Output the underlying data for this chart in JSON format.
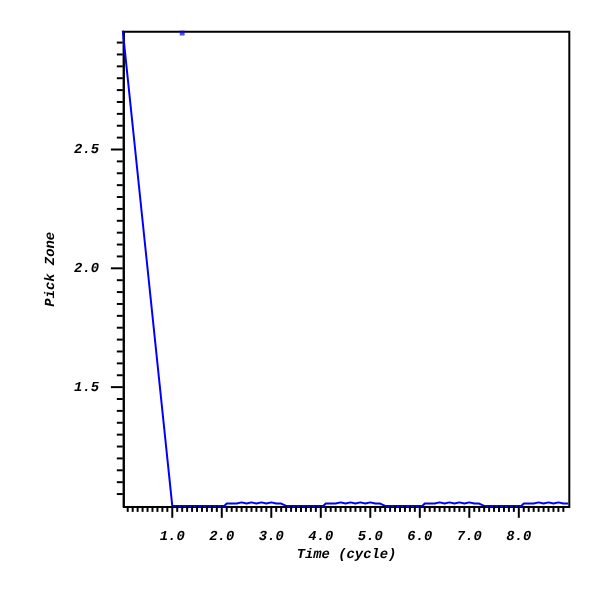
{
  "chart_data": {
    "type": "line",
    "xlabel": "Time (cycle)",
    "ylabel": "Pick Zone",
    "xlim": [
      0,
      9
    ],
    "ylim": [
      1,
      3
    ],
    "xticks": [
      {
        "value": 0.1,
        "label": null
      },
      {
        "value": 0.2,
        "label": null
      },
      {
        "value": 0.3,
        "label": null
      },
      {
        "value": 0.4,
        "label": null
      },
      {
        "value": 0.5,
        "label": null
      },
      {
        "value": 0.6,
        "label": null
      },
      {
        "value": 0.7,
        "label": null
      },
      {
        "value": 0.8,
        "label": null
      },
      {
        "value": 0.9,
        "label": null
      },
      {
        "value": 1,
        "label": "1.0"
      },
      {
        "value": 1.1,
        "label": null
      },
      {
        "value": 1.2,
        "label": null
      },
      {
        "value": 1.3,
        "label": null
      },
      {
        "value": 1.4,
        "label": null
      },
      {
        "value": 1.5,
        "label": null
      },
      {
        "value": 1.6,
        "label": null
      },
      {
        "value": 1.7,
        "label": null
      },
      {
        "value": 1.8,
        "label": null
      },
      {
        "value": 1.9,
        "label": null
      },
      {
        "value": 2,
        "label": "2.0"
      },
      {
        "value": 2.1,
        "label": null
      },
      {
        "value": 2.2,
        "label": null
      },
      {
        "value": 2.3,
        "label": null
      },
      {
        "value": 2.4,
        "label": null
      },
      {
        "value": 2.5,
        "label": null
      },
      {
        "value": 2.6,
        "label": null
      },
      {
        "value": 2.7,
        "label": null
      },
      {
        "value": 2.8,
        "label": null
      },
      {
        "value": 2.9,
        "label": null
      },
      {
        "value": 3,
        "label": "3.0"
      },
      {
        "value": 3.1,
        "label": null
      },
      {
        "value": 3.2,
        "label": null
      },
      {
        "value": 3.3,
        "label": null
      },
      {
        "value": 3.4,
        "label": null
      },
      {
        "value": 3.5,
        "label": null
      },
      {
        "value": 3.6,
        "label": null
      },
      {
        "value": 3.7,
        "label": null
      },
      {
        "value": 3.8,
        "label": null
      },
      {
        "value": 3.9,
        "label": null
      },
      {
        "value": 4,
        "label": "4.0"
      },
      {
        "value": 4.1,
        "label": null
      },
      {
        "value": 4.2,
        "label": null
      },
      {
        "value": 4.3,
        "label": null
      },
      {
        "value": 4.4,
        "label": null
      },
      {
        "value": 4.5,
        "label": null
      },
      {
        "value": 4.6,
        "label": null
      },
      {
        "value": 4.7,
        "label": null
      },
      {
        "value": 4.8,
        "label": null
      },
      {
        "value": 4.9,
        "label": null
      },
      {
        "value": 5,
        "label": "5.0"
      },
      {
        "value": 5.1,
        "label": null
      },
      {
        "value": 5.2,
        "label": null
      },
      {
        "value": 5.3,
        "label": null
      },
      {
        "value": 5.4,
        "label": null
      },
      {
        "value": 5.5,
        "label": null
      },
      {
        "value": 5.6,
        "label": null
      },
      {
        "value": 5.7,
        "label": null
      },
      {
        "value": 5.8,
        "label": null
      },
      {
        "value": 5.9,
        "label": null
      },
      {
        "value": 6,
        "label": "6.0"
      },
      {
        "value": 6.1,
        "label": null
      },
      {
        "value": 6.2,
        "label": null
      },
      {
        "value": 6.3,
        "label": null
      },
      {
        "value": 6.4,
        "label": null
      },
      {
        "value": 6.5,
        "label": null
      },
      {
        "value": 6.6,
        "label": null
      },
      {
        "value": 6.7,
        "label": null
      },
      {
        "value": 6.8,
        "label": null
      },
      {
        "value": 6.9,
        "label": null
      },
      {
        "value": 7,
        "label": "7.0"
      },
      {
        "value": 7.1,
        "label": null
      },
      {
        "value": 7.2,
        "label": null
      },
      {
        "value": 7.3,
        "label": null
      },
      {
        "value": 7.4,
        "label": null
      },
      {
        "value": 7.5,
        "label": null
      },
      {
        "value": 7.6,
        "label": null
      },
      {
        "value": 7.7,
        "label": null
      },
      {
        "value": 7.8,
        "label": null
      },
      {
        "value": 7.9,
        "label": null
      },
      {
        "value": 8,
        "label": "8.0"
      },
      {
        "value": 8.1,
        "label": null
      },
      {
        "value": 8.2,
        "label": null
      },
      {
        "value": 8.3,
        "label": null
      },
      {
        "value": 8.4,
        "label": null
      },
      {
        "value": 8.5,
        "label": null
      },
      {
        "value": 8.6,
        "label": null
      },
      {
        "value": 8.7,
        "label": null
      },
      {
        "value": 8.8,
        "label": null
      },
      {
        "value": 8.9,
        "label": null
      }
    ],
    "yticks": [
      {
        "value": 1.05,
        "label": null
      },
      {
        "value": 1.1,
        "label": null
      },
      {
        "value": 1.15,
        "label": null
      },
      {
        "value": 1.2,
        "label": null
      },
      {
        "value": 1.25,
        "label": null
      },
      {
        "value": 1.3,
        "label": null
      },
      {
        "value": 1.35,
        "label": null
      },
      {
        "value": 1.4,
        "label": null
      },
      {
        "value": 1.45,
        "label": null
      },
      {
        "value": 1.5,
        "label": "1.5"
      },
      {
        "value": 1.55,
        "label": null
      },
      {
        "value": 1.6,
        "label": null
      },
      {
        "value": 1.65,
        "label": null
      },
      {
        "value": 1.7,
        "label": null
      },
      {
        "value": 1.75,
        "label": null
      },
      {
        "value": 1.8,
        "label": null
      },
      {
        "value": 1.85,
        "label": null
      },
      {
        "value": 1.9,
        "label": null
      },
      {
        "value": 1.95,
        "label": null
      },
      {
        "value": 2,
        "label": "2.0"
      },
      {
        "value": 2.05,
        "label": null
      },
      {
        "value": 2.1,
        "label": null
      },
      {
        "value": 2.15,
        "label": null
      },
      {
        "value": 2.2,
        "label": null
      },
      {
        "value": 2.25,
        "label": null
      },
      {
        "value": 2.3,
        "label": null
      },
      {
        "value": 2.35,
        "label": null
      },
      {
        "value": 2.4,
        "label": null
      },
      {
        "value": 2.45,
        "label": null
      },
      {
        "value": 2.5,
        "label": "2.5"
      },
      {
        "value": 2.55,
        "label": null
      },
      {
        "value": 2.6,
        "label": null
      },
      {
        "value": 2.65,
        "label": null
      },
      {
        "value": 2.7,
        "label": null
      },
      {
        "value": 2.75,
        "label": null
      },
      {
        "value": 2.8,
        "label": null
      },
      {
        "value": 2.85,
        "label": null
      },
      {
        "value": 2.9,
        "label": null
      },
      {
        "value": 2.95,
        "label": null
      }
    ],
    "grid": false,
    "series": [
      {
        "type": "line",
        "color": "#0000ff",
        "x": [
          0,
          1.0,
          2.05,
          2.1,
          2.3,
          2.4,
          2.5,
          2.6,
          2.7,
          2.8,
          2.9,
          3.0,
          3.1,
          3.2,
          3.3,
          4.05,
          4.1,
          4.3,
          4.4,
          4.5,
          4.6,
          4.7,
          4.8,
          4.9,
          5.0,
          5.1,
          5.2,
          5.3,
          6.05,
          6.1,
          6.3,
          6.4,
          6.5,
          6.6,
          6.7,
          6.8,
          6.9,
          7.0,
          7.1,
          7.2,
          7.3,
          8.05,
          8.1,
          8.3,
          8.4,
          8.5,
          8.6,
          8.7,
          8.8,
          8.9,
          9.0
        ],
        "values": [
          3.0,
          1.0,
          1.0,
          1.01,
          1.01,
          1.015,
          1.01,
          1.015,
          1.01,
          1.015,
          1.01,
          1.015,
          1.01,
          1.01,
          1.0,
          1.0,
          1.01,
          1.01,
          1.015,
          1.01,
          1.015,
          1.01,
          1.015,
          1.01,
          1.015,
          1.01,
          1.01,
          1.0,
          1.0,
          1.01,
          1.01,
          1.015,
          1.01,
          1.015,
          1.01,
          1.015,
          1.01,
          1.015,
          1.01,
          1.01,
          1.0,
          1.0,
          1.01,
          1.01,
          1.015,
          1.01,
          1.015,
          1.01,
          1.015,
          1.01,
          1.01
        ]
      },
      {
        "type": "scatter",
        "marker": "square",
        "color": "#0000ff",
        "x": [
          1.2
        ],
        "values": [
          2.99
        ]
      }
    ]
  }
}
